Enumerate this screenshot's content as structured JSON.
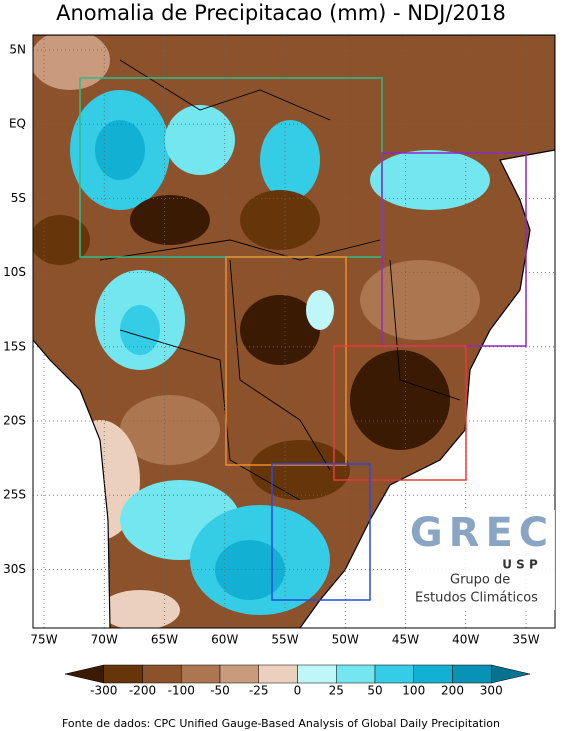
{
  "title": "Anomalia de Precipitacao (mm) - NDJ/2018",
  "lon_labels": [
    "75W",
    "70W",
    "65W",
    "60W",
    "55W",
    "50W",
    "45W",
    "40W",
    "35W"
  ],
  "lat_labels": [
    "5N",
    "EQ",
    "5S",
    "10S",
    "15S",
    "20S",
    "25S",
    "30S"
  ],
  "colorbar": {
    "levels": [
      -300,
      -200,
      -100,
      -50,
      -25,
      0,
      25,
      50,
      100,
      200,
      300
    ],
    "colors": [
      "#3a1a02",
      "#663509",
      "#8c522b",
      "#ab7650",
      "#c99b7c",
      "#ebd1bd",
      "#bff6f8",
      "#74e6f0",
      "#35cde6",
      "#12b0d3",
      "#0892b6",
      "#05728f"
    ]
  },
  "logo": {
    "mark": "GREC",
    "institution": "U S P",
    "line1": "Grupo de",
    "line2": "Estudos Climáticos"
  },
  "footer": "Fonte de dados: CPC Unified Gauge-Based Analysis of Global Daily Precipitation"
}
